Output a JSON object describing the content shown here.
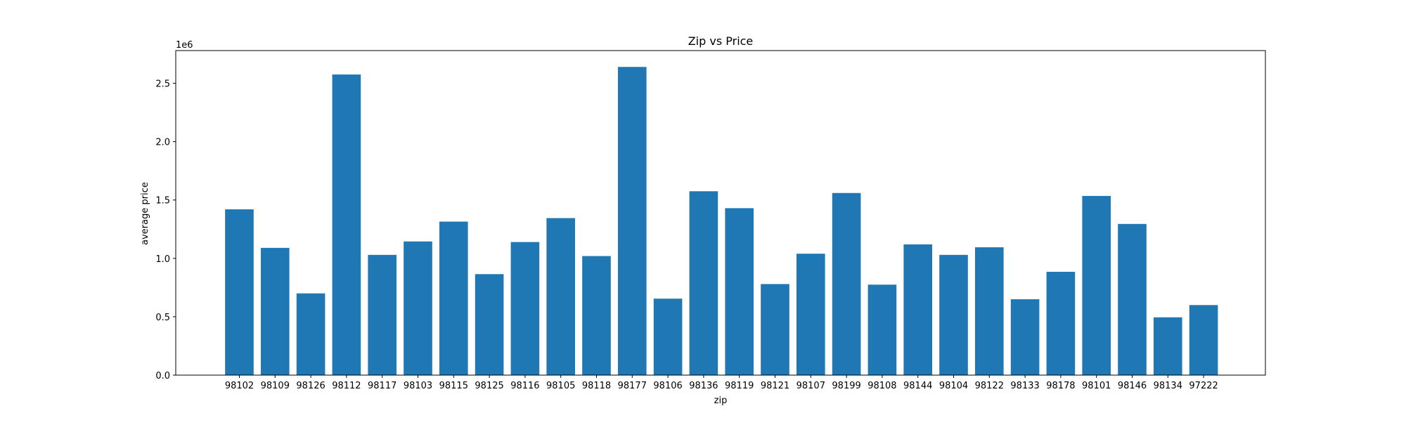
{
  "chart_data": {
    "type": "bar",
    "title": "Zip vs Price",
    "xlabel": "zip",
    "ylabel": "average price",
    "y_exponent_label": "1e6",
    "y_scale": 1000000,
    "ylim": [
      0,
      2780000
    ],
    "yticks": [
      0,
      500000,
      1000000,
      1500000,
      2000000,
      2500000
    ],
    "ytick_labels": [
      "0.0",
      "0.5",
      "1.0",
      "1.5",
      "2.0",
      "2.5"
    ],
    "grid": false,
    "bar_color": "#1f77b4",
    "categories": [
      "98102",
      "98109",
      "98126",
      "98112",
      "98117",
      "98103",
      "98115",
      "98125",
      "98116",
      "98105",
      "98118",
      "98177",
      "98106",
      "98136",
      "98119",
      "98121",
      "98107",
      "98199",
      "98108",
      "98144",
      "98104",
      "98122",
      "98133",
      "98178",
      "98101",
      "98146",
      "98134",
      "97222"
    ],
    "values": [
      1420000,
      1090000,
      700000,
      2575000,
      1030000,
      1145000,
      1315000,
      865000,
      1140000,
      1345000,
      1020000,
      2640000,
      655000,
      1575000,
      1430000,
      780000,
      1040000,
      1560000,
      775000,
      1120000,
      1030000,
      1095000,
      650000,
      885000,
      1535000,
      1295000,
      495000,
      600000
    ]
  }
}
